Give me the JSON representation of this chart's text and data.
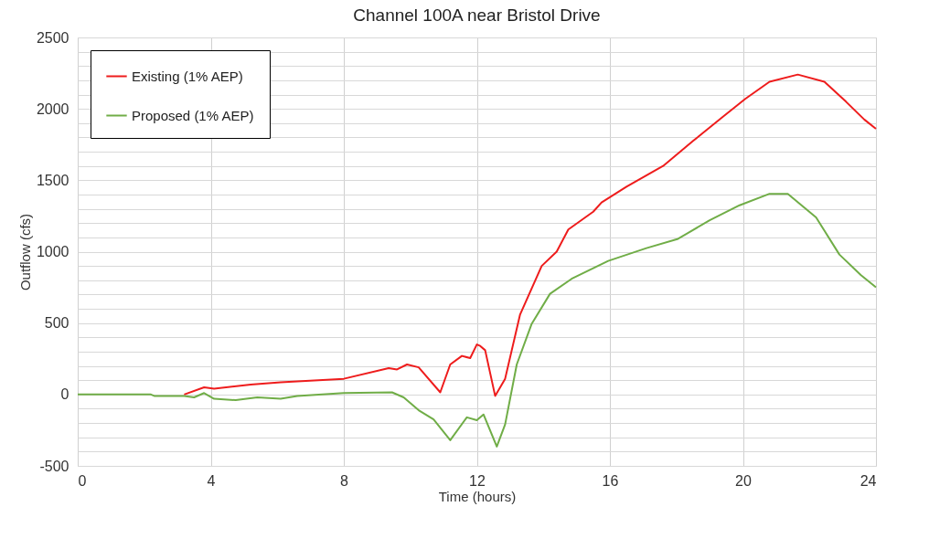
{
  "chart_data": {
    "type": "line",
    "title": "Channel 100A near Bristol Drive",
    "xlabel": "Time (hours)",
    "ylabel": "Outflow (cfs)",
    "xlim": [
      0,
      24
    ],
    "xticks": [
      0,
      4,
      8,
      12,
      16,
      20,
      24
    ],
    "ylim": [
      -500,
      2500
    ],
    "yticks": [
      -500,
      {
        "value": -400,
        "label": null
      },
      {
        "value": -300,
        "label": null
      },
      {
        "value": -200,
        "label": null
      },
      {
        "value": -100,
        "label": null
      },
      0,
      {
        "value": 100,
        "label": null
      },
      {
        "value": 200,
        "label": null
      },
      {
        "value": 300,
        "label": null
      },
      {
        "value": 400,
        "label": null
      },
      500,
      {
        "value": 600,
        "label": null
      },
      {
        "value": 700,
        "label": null
      },
      {
        "value": 800,
        "label": null
      },
      {
        "value": 900,
        "label": null
      },
      1000,
      {
        "value": 1100,
        "label": null
      },
      {
        "value": 1200,
        "label": null
      },
      {
        "value": 1300,
        "label": null
      },
      {
        "value": 1400,
        "label": null
      },
      1500,
      {
        "value": 1600,
        "label": null
      },
      {
        "value": 1700,
        "label": null
      },
      {
        "value": 1800,
        "label": null
      },
      {
        "value": 1900,
        "label": null
      },
      2000,
      {
        "value": 2100,
        "label": null
      },
      {
        "value": 2200,
        "label": null
      },
      {
        "value": 2300,
        "label": null
      },
      {
        "value": 2400,
        "label": null
      },
      2500
    ],
    "grid": true,
    "legend": "top left",
    "line_style": "solid",
    "series": [
      {
        "name": "Existing (1% AEP)",
        "color": "#ee1c1c",
        "x": [
          3.2,
          3.8,
          4.1,
          5.2,
          6.1,
          8.0,
          9.35,
          9.6,
          9.9,
          10.25,
          10.9,
          11.2,
          11.55,
          11.8,
          12.0,
          12.1,
          12.25,
          12.55,
          12.85,
          13.3,
          13.95,
          14.4,
          14.75,
          15.5,
          15.75,
          16.5,
          17.6,
          18.5,
          19.4,
          20.07,
          20.8,
          21.65,
          22.45,
          23.1,
          23.65,
          24
        ],
        "values": [
          0,
          50,
          40,
          70,
          85,
          110,
          185,
          175,
          210,
          190,
          15,
          210,
          270,
          255,
          350,
          340,
          310,
          -10,
          110,
          560,
          900,
          1000,
          1155,
          1280,
          1345,
          1455,
          1600,
          1775,
          1945,
          2070,
          2190,
          2240,
          2190,
          2050,
          1925,
          1860
        ]
      },
      {
        "name": "Proposed (1% AEP)",
        "color": "#70ad47",
        "x": [
          0,
          2.2,
          2.3,
          3.2,
          3.5,
          3.8,
          4.1,
          4.75,
          5.4,
          6.1,
          6.6,
          8.0,
          9.45,
          9.8,
          10.25,
          10.7,
          11.2,
          11.7,
          12.0,
          12.2,
          12.6,
          12.85,
          13.2,
          13.65,
          14.2,
          14.85,
          15.95,
          17.1,
          18.05,
          19.0,
          19.9,
          20.8,
          21.35,
          22.2,
          22.9,
          23.55,
          24
        ],
        "values": [
          0,
          0,
          -10,
          -10,
          -20,
          10,
          -30,
          -40,
          -20,
          -30,
          -10,
          10,
          15,
          -20,
          -110,
          -175,
          -320,
          -160,
          -180,
          -140,
          -365,
          -210,
          210,
          495,
          705,
          810,
          935,
          1025,
          1090,
          1220,
          1325,
          1405,
          1405,
          1240,
          980,
          835,
          750
        ]
      }
    ]
  }
}
